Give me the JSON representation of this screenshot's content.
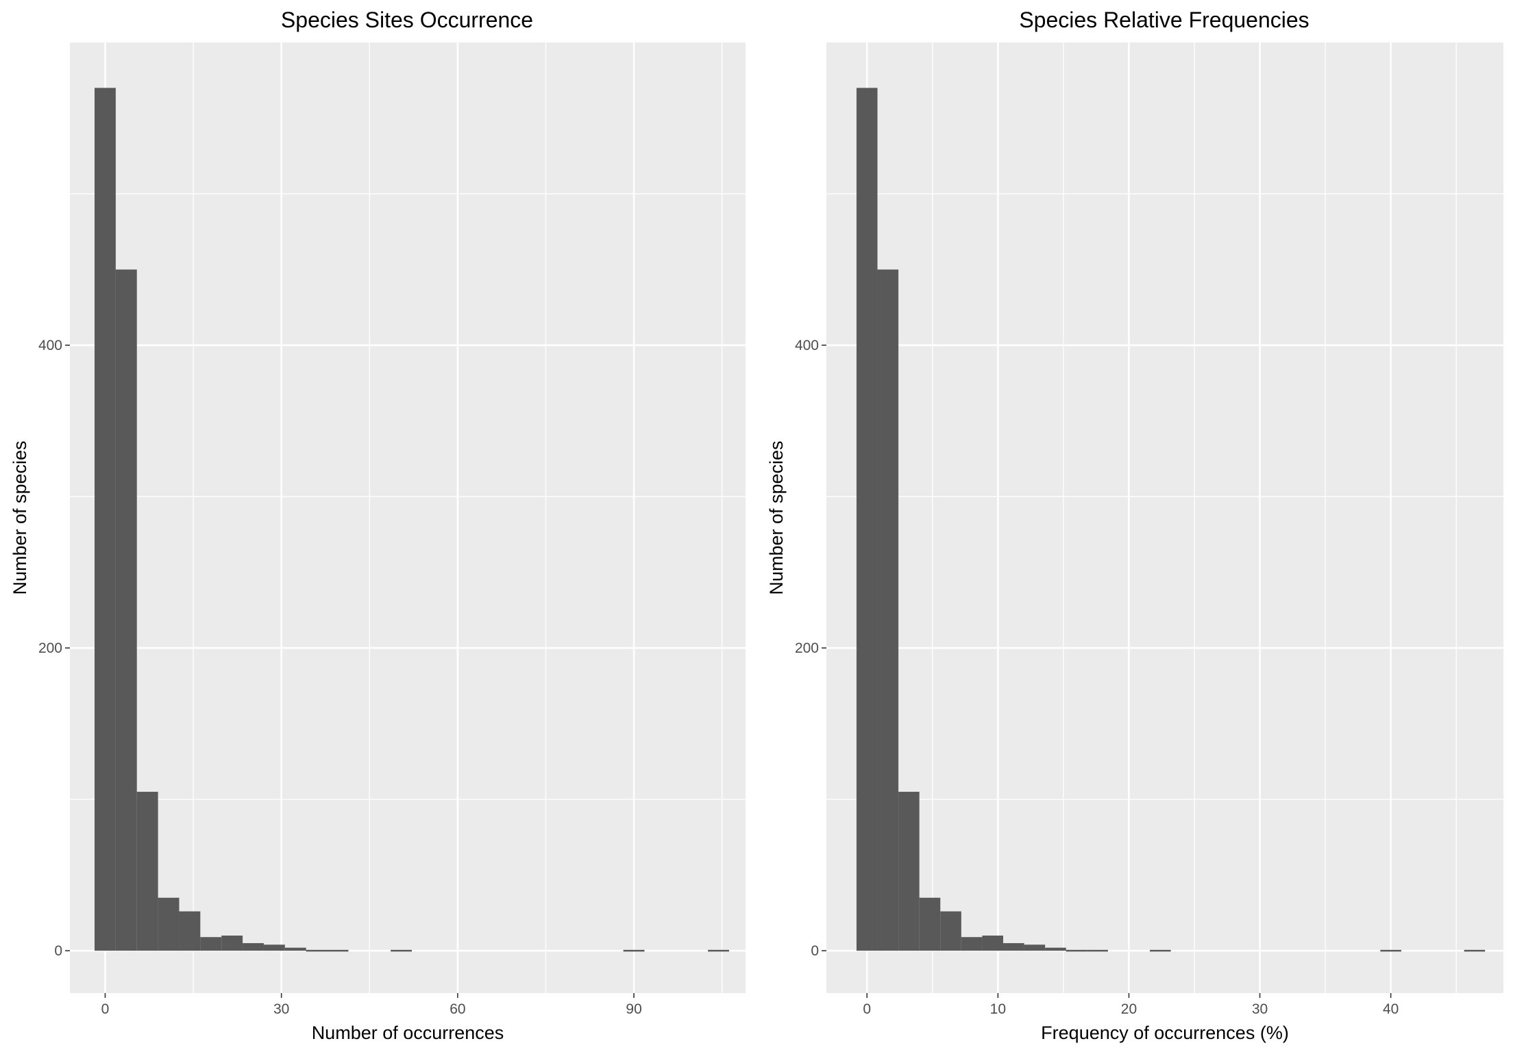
{
  "chart_data": [
    {
      "type": "bar",
      "title": "Species Sites Occurrence",
      "xlabel": "Number of occurrences",
      "ylabel": "Number of species",
      "bin_width": 3.6,
      "bin_centers": [
        0,
        3.6,
        7.2,
        10.8,
        14.4,
        18.0,
        21.6,
        25.2,
        28.8,
        32.4,
        36.0,
        39.6,
        43.2,
        46.8,
        50.4,
        54.0,
        57.6,
        61.2,
        64.8,
        68.4,
        72.0,
        75.6,
        79.2,
        82.8,
        86.4,
        90.0,
        93.6,
        97.2,
        100.8,
        104.4
      ],
      "values": [
        570,
        450,
        105,
        35,
        26,
        9,
        10,
        5,
        4,
        2,
        1,
        1,
        0,
        0,
        1,
        0,
        0,
        0,
        0,
        0,
        0,
        0,
        0,
        0,
        0,
        1,
        0,
        0,
        0,
        1
      ],
      "xlim": [
        -6,
        109
      ],
      "ylim": [
        -28,
        600
      ],
      "xticks": [
        0,
        30,
        60,
        90
      ],
      "xtick_labels": [
        "0",
        "30",
        "60",
        "90"
      ],
      "yticks": [
        0,
        200,
        400
      ],
      "ytick_labels": [
        "0",
        "200",
        "400"
      ],
      "bar_color": "#595959",
      "panel_color": "#ebebeb",
      "grid": true
    },
    {
      "type": "bar",
      "title": "Species Relative Frequencies",
      "xlabel": "Frequency of occurrences (%)",
      "ylabel": "Number of species",
      "bin_width": 1.6,
      "bin_centers": [
        0,
        1.6,
        3.2,
        4.8,
        6.4,
        8.0,
        9.6,
        11.2,
        12.8,
        14.4,
        16.0,
        17.6,
        19.2,
        20.8,
        22.4,
        24.0,
        25.6,
        27.2,
        28.8,
        30.4,
        32.0,
        33.6,
        35.2,
        36.8,
        38.4,
        40.0,
        41.6,
        43.2,
        44.8,
        46.4
      ],
      "values": [
        570,
        450,
        105,
        35,
        26,
        9,
        10,
        5,
        4,
        2,
        1,
        1,
        0,
        0,
        1,
        0,
        0,
        0,
        0,
        0,
        0,
        0,
        0,
        0,
        0,
        1,
        0,
        0,
        0,
        1
      ],
      "xlim": [
        -3.1,
        48.6
      ],
      "ylim": [
        -28,
        600
      ],
      "xticks": [
        0,
        10,
        20,
        30,
        40
      ],
      "xtick_labels": [
        "0",
        "10",
        "20",
        "30",
        "40"
      ],
      "yticks": [
        0,
        200,
        400
      ],
      "ytick_labels": [
        "0",
        "200",
        "400"
      ],
      "bar_color": "#595959",
      "panel_color": "#ebebeb",
      "grid": true
    }
  ]
}
